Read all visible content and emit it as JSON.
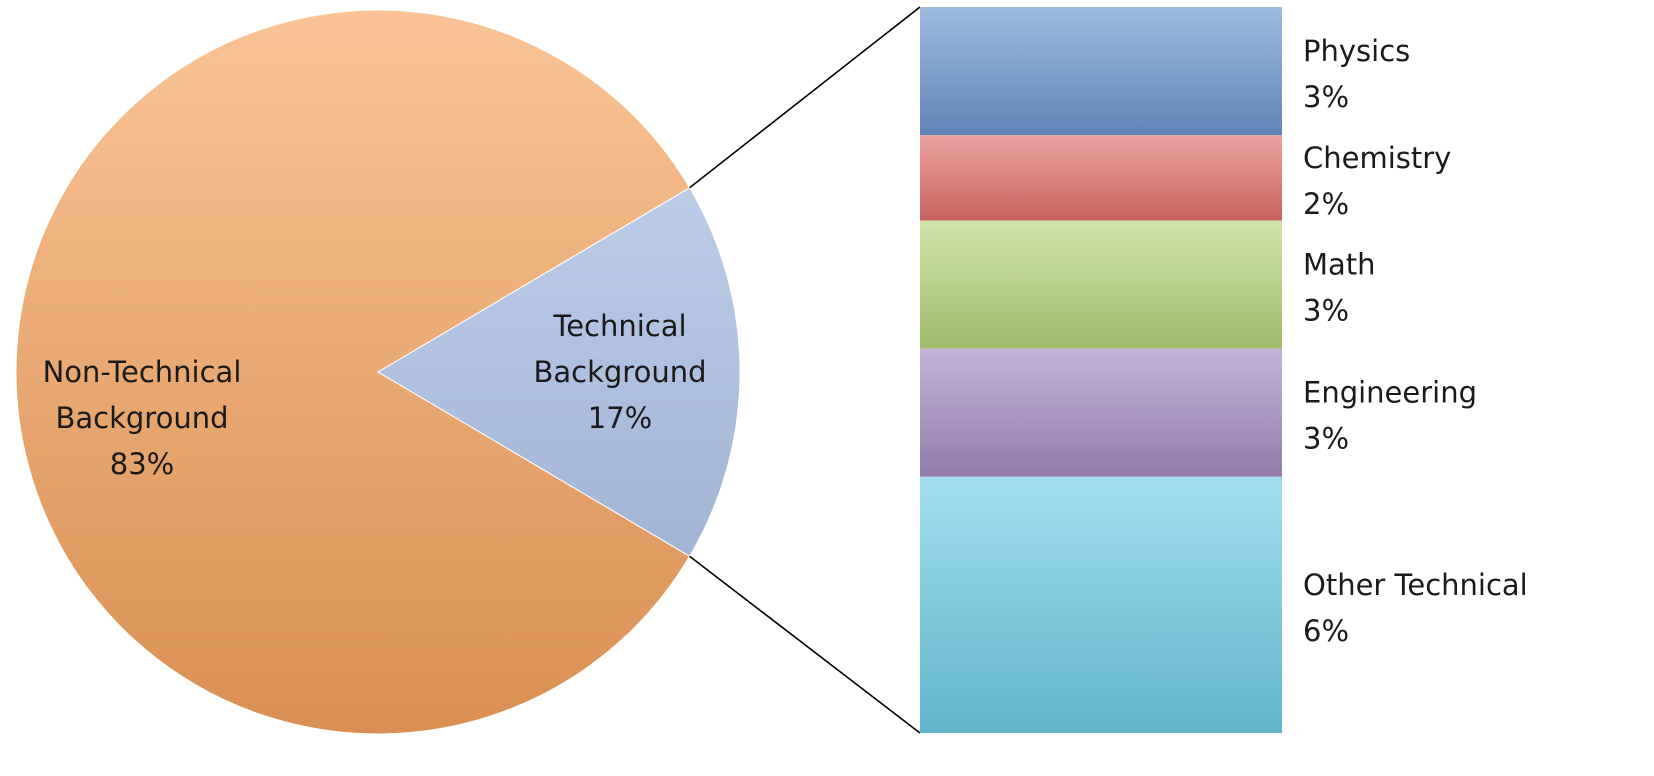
{
  "chart_data": {
    "type": "bar-of-pie",
    "pie": {
      "slices": [
        {
          "name": "Technical Background",
          "label_lines": [
            "Technical",
            "Background"
          ],
          "value": 17,
          "label": "17%",
          "color": "#a9c1e8"
        },
        {
          "name": "Non-Technical Background",
          "label_lines": [
            "Non-Technical",
            "Background"
          ],
          "value": 83,
          "label": "83%",
          "color": "#f7a35c"
        }
      ]
    },
    "stacked_bar": {
      "segments": [
        {
          "name": "Physics",
          "value": 3,
          "label": "3%",
          "color": "#6c97d0"
        },
        {
          "name": "Chemistry",
          "value": 2,
          "label": "2%",
          "color": "#e2716d"
        },
        {
          "name": "Math",
          "value": 3,
          "label": "3%",
          "color": "#b5d67a"
        },
        {
          "name": "Engineering",
          "value": 3,
          "label": "3%",
          "color": "#a58cc1"
        },
        {
          "name": "Other Technical",
          "value": 6,
          "label": "6%",
          "color": "#6fcde6"
        }
      ]
    }
  }
}
